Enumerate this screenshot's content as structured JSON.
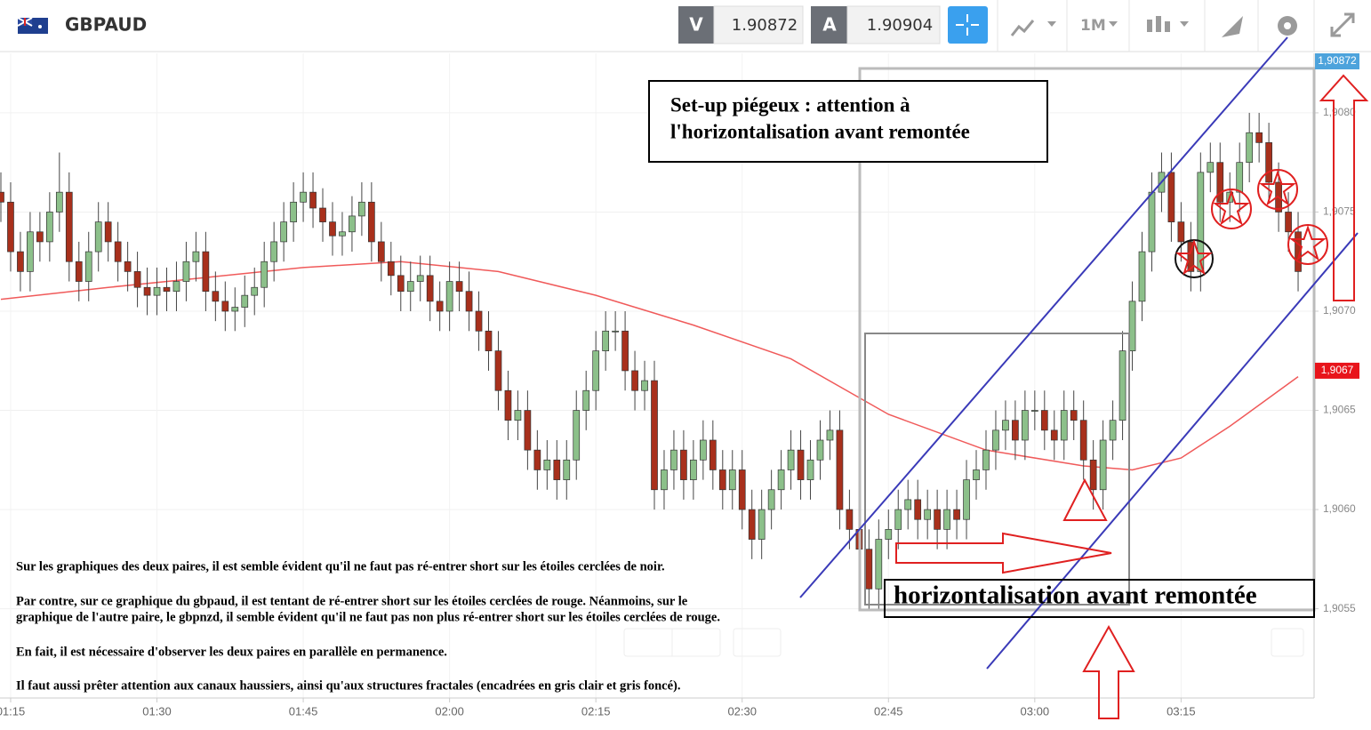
{
  "header": {
    "symbol": "GBPAUD",
    "sell_label": "V",
    "sell_price": 1.90872,
    "buy_label": "A",
    "buy_price": 1.90904,
    "timeframe": "1M"
  },
  "chart_data": {
    "type": "candlestick",
    "x": [
      "01:14",
      "01:15",
      "01:16",
      "01:17",
      "01:18",
      "01:19",
      "01:20",
      "01:21",
      "01:22",
      "01:23",
      "01:24",
      "01:25",
      "01:26",
      "01:27",
      "01:28",
      "01:29",
      "01:30",
      "01:31",
      "01:32",
      "01:33",
      "01:34",
      "01:35",
      "01:36",
      "01:37",
      "01:38",
      "01:39",
      "01:40",
      "01:41",
      "01:42",
      "01:43",
      "01:44",
      "01:45",
      "01:46",
      "01:47",
      "01:48",
      "01:49",
      "01:50",
      "01:51",
      "01:52",
      "01:53",
      "01:54",
      "01:55",
      "01:56",
      "01:57",
      "01:58",
      "01:59",
      "02:00",
      "02:01",
      "02:02",
      "02:03",
      "02:04",
      "02:05",
      "02:06",
      "02:07",
      "02:08",
      "02:09",
      "02:10",
      "02:11",
      "02:12",
      "02:13",
      "02:14",
      "02:15",
      "02:16",
      "02:17",
      "02:18",
      "02:19",
      "02:20",
      "02:21",
      "02:22",
      "02:23",
      "02:24",
      "02:25",
      "02:26",
      "02:27",
      "02:28",
      "02:29",
      "02:30",
      "02:31",
      "02:32",
      "02:33",
      "02:34",
      "02:35",
      "02:36",
      "02:37",
      "02:38",
      "02:39",
      "02:40",
      "02:41",
      "02:42",
      "02:43",
      "02:44",
      "02:45",
      "02:46",
      "02:47",
      "02:48",
      "02:49",
      "02:50",
      "02:51",
      "02:52",
      "02:53",
      "02:54",
      "02:55",
      "02:56",
      "02:57",
      "02:58",
      "02:59",
      "03:00",
      "03:01",
      "03:02",
      "03:03",
      "03:04",
      "03:05",
      "03:06",
      "03:07",
      "03:08",
      "03:09",
      "03:10",
      "03:11",
      "03:12",
      "03:13",
      "03:14",
      "03:15",
      "03:16",
      "03:17",
      "03:18",
      "03:19",
      "03:20",
      "03:21",
      "03:22",
      "03:23",
      "03:24",
      "03:25",
      "03:26",
      "03:27"
    ],
    "open": [
      1.9076,
      1.90755,
      1.9073,
      1.9072,
      1.9074,
      1.90735,
      1.9075,
      1.9076,
      1.90725,
      1.90715,
      1.9073,
      1.90745,
      1.90735,
      1.90725,
      1.9072,
      1.90712,
      1.90708,
      1.90712,
      1.9071,
      1.90715,
      1.90725,
      1.9073,
      1.9071,
      1.90705,
      1.907,
      1.90702,
      1.90708,
      1.90712,
      1.90725,
      1.90735,
      1.90745,
      1.90755,
      1.9076,
      1.90752,
      1.90745,
      1.90738,
      1.9074,
      1.90748,
      1.90755,
      1.90735,
      1.90725,
      1.90718,
      1.9071,
      1.90715,
      1.90718,
      1.90705,
      1.907,
      1.90715,
      1.9071,
      1.907,
      1.9069,
      1.9068,
      1.9066,
      1.90645,
      1.9065,
      1.9063,
      1.9062,
      1.90625,
      1.90615,
      1.90625,
      1.9065,
      1.9066,
      1.9068,
      1.9069,
      1.9069,
      1.9067,
      1.9066,
      1.90665,
      1.9061,
      1.9062,
      1.9063,
      1.90615,
      1.90625,
      1.90635,
      1.9062,
      1.9061,
      1.9062,
      1.906,
      1.90585,
      1.906,
      1.9061,
      1.9062,
      1.9063,
      1.90615,
      1.90625,
      1.90635,
      1.9064,
      1.906,
      1.9059,
      1.9058,
      1.9056,
      1.90585,
      1.9059,
      1.906,
      1.90605,
      1.90595,
      1.906,
      1.9059,
      1.906,
      1.90595,
      1.90615,
      1.9062,
      1.9063,
      1.9064,
      1.90645,
      1.90635,
      1.9065,
      1.9065,
      1.9064,
      1.90635,
      1.9065,
      1.90645,
      1.90625,
      1.9061,
      1.90635,
      1.90645,
      1.9068,
      1.90705,
      1.9073,
      1.9076,
      1.9077,
      1.90745,
      1.90735,
      1.9072,
      1.9077,
      1.90775,
      1.90755,
      1.9076,
      1.90775,
      1.9079,
      1.90785,
      1.90765,
      1.9075,
      1.9074
    ],
    "high": [
      1.9077,
      1.90765,
      1.9074,
      1.9075,
      1.9075,
      1.9076,
      1.9078,
      1.9077,
      1.90735,
      1.9074,
      1.90755,
      1.90755,
      1.90745,
      1.90735,
      1.9073,
      1.90722,
      1.90722,
      1.90722,
      1.90725,
      1.90735,
      1.9074,
      1.9074,
      1.9072,
      1.90715,
      1.90712,
      1.90718,
      1.90722,
      1.90735,
      1.90745,
      1.90755,
      1.90765,
      1.9077,
      1.9077,
      1.90762,
      1.90755,
      1.9075,
      1.90758,
      1.90765,
      1.90765,
      1.90745,
      1.90735,
      1.90728,
      1.90725,
      1.90728,
      1.90728,
      1.90715,
      1.90725,
      1.90725,
      1.9072,
      1.9071,
      1.907,
      1.9069,
      1.9067,
      1.9066,
      1.9066,
      1.9064,
      1.90635,
      1.90635,
      1.90635,
      1.9066,
      1.9067,
      1.9069,
      1.907,
      1.907,
      1.907,
      1.9068,
      1.90675,
      1.90675,
      1.9063,
      1.9064,
      1.9064,
      1.90635,
      1.90645,
      1.90645,
      1.9063,
      1.9063,
      1.9063,
      1.9061,
      1.9061,
      1.9062,
      1.9063,
      1.9064,
      1.9064,
      1.90635,
      1.90645,
      1.9065,
      1.9065,
      1.9061,
      1.906,
      1.9059,
      1.90595,
      1.906,
      1.9061,
      1.90615,
      1.90615,
      1.9061,
      1.9061,
      1.9061,
      1.9061,
      1.90625,
      1.9063,
      1.9064,
      1.9065,
      1.90655,
      1.90655,
      1.9066,
      1.9066,
      1.9066,
      1.9065,
      1.9066,
      1.9066,
      1.90655,
      1.90635,
      1.90645,
      1.90655,
      1.9069,
      1.90715,
      1.9074,
      1.9077,
      1.9078,
      1.9078,
      1.90755,
      1.90745,
      1.9078,
      1.90785,
      1.90785,
      1.9077,
      1.90785,
      1.908,
      1.908,
      1.90795,
      1.90775,
      1.9076,
      1.9075
    ],
    "low": [
      1.90745,
      1.9072,
      1.9071,
      1.9071,
      1.90725,
      1.90725,
      1.9074,
      1.90715,
      1.90705,
      1.90705,
      1.9072,
      1.90725,
      1.90715,
      1.9071,
      1.90702,
      1.90698,
      1.90698,
      1.907,
      1.907,
      1.90705,
      1.90715,
      1.907,
      1.90695,
      1.9069,
      1.9069,
      1.90692,
      1.90698,
      1.90702,
      1.90715,
      1.90725,
      1.90735,
      1.90745,
      1.90742,
      1.90735,
      1.90728,
      1.90728,
      1.9073,
      1.90738,
      1.90725,
      1.90715,
      1.90708,
      1.907,
      1.907,
      1.90705,
      1.90695,
      1.9069,
      1.9069,
      1.907,
      1.9069,
      1.9068,
      1.9067,
      1.9065,
      1.90635,
      1.90635,
      1.9062,
      1.9061,
      1.9061,
      1.90605,
      1.90605,
      1.90615,
      1.9064,
      1.9065,
      1.9067,
      1.9068,
      1.9066,
      1.9065,
      1.9065,
      1.906,
      1.906,
      1.9061,
      1.90605,
      1.90605,
      1.90615,
      1.9061,
      1.906,
      1.906,
      1.9059,
      1.90575,
      1.90575,
      1.9059,
      1.906,
      1.9061,
      1.90605,
      1.90605,
      1.90615,
      1.90625,
      1.9059,
      1.9058,
      1.9057,
      1.9055,
      1.9055,
      1.90575,
      1.9058,
      1.9059,
      1.90585,
      1.90585,
      1.9058,
      1.9058,
      1.90585,
      1.90585,
      1.90605,
      1.9061,
      1.9062,
      1.9063,
      1.90625,
      1.90625,
      1.9064,
      1.9063,
      1.90625,
      1.90625,
      1.90635,
      1.90615,
      1.906,
      1.906,
      1.90625,
      1.90635,
      1.9067,
      1.90695,
      1.9072,
      1.9075,
      1.90735,
      1.90725,
      1.9071,
      1.9071,
      1.9076,
      1.90745,
      1.90745,
      1.9075,
      1.90765,
      1.90775,
      1.90755,
      1.9074,
      1.9073,
      1.9071
    ],
    "close": [
      1.90755,
      1.9073,
      1.9072,
      1.9074,
      1.90735,
      1.9075,
      1.9076,
      1.90725,
      1.90715,
      1.9073,
      1.90745,
      1.90735,
      1.90725,
      1.9072,
      1.90712,
      1.90708,
      1.90712,
      1.9071,
      1.90715,
      1.90725,
      1.9073,
      1.9071,
      1.90705,
      1.907,
      1.90702,
      1.90708,
      1.90712,
      1.90725,
      1.90735,
      1.90745,
      1.90755,
      1.9076,
      1.90752,
      1.90745,
      1.90738,
      1.9074,
      1.90748,
      1.90755,
      1.90735,
      1.90725,
      1.90718,
      1.9071,
      1.90715,
      1.90718,
      1.90705,
      1.907,
      1.90715,
      1.9071,
      1.907,
      1.9069,
      1.9068,
      1.9066,
      1.90645,
      1.9065,
      1.9063,
      1.9062,
      1.90625,
      1.90615,
      1.90625,
      1.9065,
      1.9066,
      1.9068,
      1.9069,
      1.9069,
      1.9067,
      1.9066,
      1.90665,
      1.9061,
      1.9062,
      1.9063,
      1.90615,
      1.90625,
      1.90635,
      1.9062,
      1.9061,
      1.9062,
      1.906,
      1.90585,
      1.906,
      1.9061,
      1.9062,
      1.9063,
      1.90615,
      1.90625,
      1.90635,
      1.9064,
      1.906,
      1.9059,
      1.9058,
      1.9056,
      1.90585,
      1.9059,
      1.906,
      1.90605,
      1.90595,
      1.906,
      1.9059,
      1.906,
      1.90595,
      1.90615,
      1.9062,
      1.9063,
      1.9064,
      1.90645,
      1.90635,
      1.9065,
      1.9065,
      1.9064,
      1.90635,
      1.9065,
      1.90645,
      1.90625,
      1.9061,
      1.90635,
      1.90645,
      1.9068,
      1.90705,
      1.9073,
      1.9076,
      1.9077,
      1.90745,
      1.90735,
      1.9072,
      1.9077,
      1.90775,
      1.90755,
      1.9076,
      1.90775,
      1.9079,
      1.90785,
      1.90765,
      1.9075,
      1.9074,
      1.9072
    ],
    "up_color": "#8cc08a",
    "down_color": "#a8301c",
    "ma": {
      "color": "#f05a5a",
      "x": [
        "01:14",
        "01:25",
        "01:35",
        "01:45",
        "01:55",
        "02:05",
        "02:15",
        "02:25",
        "02:35",
        "02:45",
        "02:55",
        "03:05",
        "03:10",
        "03:15",
        "03:20",
        "03:27"
      ],
      "values": [
        1.90706,
        1.90712,
        1.90717,
        1.90722,
        1.90725,
        1.9072,
        1.90708,
        1.90693,
        1.90676,
        1.90648,
        1.9063,
        1.90622,
        1.9062,
        1.90626,
        1.90642,
        1.90667
      ]
    },
    "xlim": [
      "01:14",
      "03:28"
    ],
    "xticks": [
      "01:15",
      "01:30",
      "01:45",
      "02:00",
      "02:15",
      "02:30",
      "02:45",
      "03:00",
      "03:15"
    ],
    "ylim": [
      1.90505,
      1.9083
    ],
    "yticks": [
      {
        "value": 1.908,
        "label": "1,9080"
      },
      {
        "value": 1.9075,
        "label": "1,9075"
      },
      {
        "value": 1.907,
        "label": "1,9070"
      },
      {
        "value": 1.9065,
        "label": "1,9065"
      },
      {
        "value": 1.906,
        "label": "1,9060"
      },
      {
        "value": 1.9055,
        "label": "1,9055"
      }
    ],
    "grid": true,
    "price_tags": [
      {
        "value": 1.90872,
        "label": "1,90872",
        "color": "#4da3dc"
      },
      {
        "value": 1.9067,
        "label": "1,9067",
        "color": "#e8141b"
      }
    ],
    "annotations": {
      "title_box": [
        "Set-up piégeux : attention à",
        "l'horizontalisation avant remontée"
      ],
      "box_label": "horizontalisation avant remontée",
      "notes": [
        "Sur les graphiques des deux paires, il est semble évident qu'il ne faut pas ré-entrer short sur les étoiles cerclées de noir.",
        "Par contre, sur ce graphique du gbpaud, il est tentant de ré-entrer short sur les étoiles cerclées de rouge. Néanmoins, sur le",
        "graphique de l'autre paire, le gbpnzd, il semble évident qu'il ne faut pas non plus ré-entrer short sur les étoiles cerclées de rouge.",
        "En fait, il est nécessaire d'observer les deux paires en parallèle en permanence.",
        "Il faut aussi prêter attention aux canaux haussiers, ainsi qu'aux structures fractales (encadrées en gris clair et gris foncé)."
      ]
    }
  }
}
